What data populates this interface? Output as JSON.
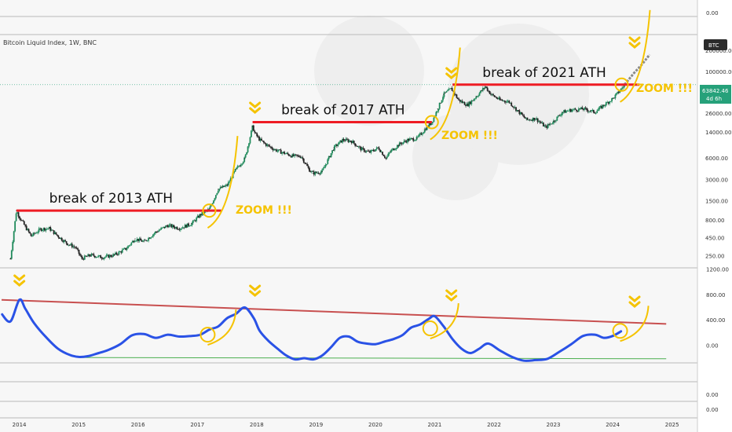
{
  "header": {
    "title": "Bitcoin Liquid Index, 1W, BNC",
    "symbol_badge": "BTC"
  },
  "price_badge": {
    "price": "63842.46",
    "countdown": "4d 6h"
  },
  "colors": {
    "ath_line": "#ee1c24",
    "zoom": "#f5c300",
    "oscillator": "#2a52e6",
    "resistance": "#c85050",
    "support": "#4caf50",
    "candle_up": "#1f8a5b",
    "candle_down": "#222222",
    "projection": "#8a8a8a"
  },
  "chart_data": [
    {
      "type": "line",
      "name": "price_pane",
      "yscale": "log",
      "ylim": [
        180,
        320000
      ],
      "y_ticks": [
        {
          "value": 200000,
          "label": "200000.00"
        },
        {
          "value": 100000,
          "label": "100000.00"
        },
        {
          "value": 26000,
          "label": "26000.00"
        },
        {
          "value": 14000,
          "label": "14000.00"
        },
        {
          "value": 6000,
          "label": "6000.00"
        },
        {
          "value": 3000,
          "label": "3000.00"
        },
        {
          "value": 1500,
          "label": "1500.00"
        },
        {
          "value": 800,
          "label": "800.00"
        },
        {
          "value": 450,
          "label": "450.00"
        },
        {
          "value": 250,
          "label": "250.00"
        }
      ],
      "x": [
        2013.85,
        2013.95,
        2014.0,
        2014.1,
        2014.2,
        2014.35,
        2014.5,
        2014.65,
        2014.8,
        2014.95,
        2015.05,
        2015.2,
        2015.4,
        2015.6,
        2015.8,
        2015.95,
        2016.1,
        2016.3,
        2016.5,
        2016.7,
        2016.9,
        2017.05,
        2017.2,
        2017.35,
        2017.5,
        2017.65,
        2017.8,
        2017.93,
        2017.97,
        2018.05,
        2018.15,
        2018.3,
        2018.45,
        2018.6,
        2018.75,
        2018.88,
        2018.95,
        2019.1,
        2019.3,
        2019.45,
        2019.6,
        2019.75,
        2019.9,
        2020.05,
        2020.18,
        2020.25,
        2020.4,
        2020.55,
        2020.7,
        2020.85,
        2020.95,
        2021.05,
        2021.15,
        2021.28,
        2021.4,
        2021.55,
        2021.7,
        2021.85,
        2021.95,
        2022.1,
        2022.25,
        2022.4,
        2022.55,
        2022.7,
        2022.87,
        2023.0,
        2023.15,
        2023.3,
        2023.5,
        2023.7,
        2023.85,
        2024.0,
        2024.1,
        2024.2
      ],
      "values": [
        230,
        1100,
        900,
        650,
        480,
        600,
        620,
        480,
        380,
        330,
        230,
        260,
        240,
        260,
        320,
        440,
        400,
        550,
        680,
        620,
        720,
        960,
        1150,
        2200,
        2500,
        4200,
        6000,
        17000,
        13500,
        11000,
        9500,
        8000,
        7200,
        6500,
        6400,
        4200,
        3700,
        3900,
        8500,
        11000,
        10500,
        8200,
        7300,
        8500,
        6000,
        7500,
        9500,
        11000,
        11500,
        16000,
        19500,
        30000,
        48000,
        58000,
        40000,
        34000,
        45000,
        62000,
        48000,
        40000,
        38000,
        28000,
        21000,
        22000,
        16500,
        20000,
        27000,
        29000,
        30000,
        27000,
        34000,
        42000,
        52000,
        66000
      ],
      "projection": {
        "x": [
          2024.2,
          2024.35,
          2024.5,
          2024.62
        ],
        "values": [
          66000,
          95000,
          130000,
          175000
        ]
      },
      "annotations": [
        {
          "text": "break of 2013 ATH",
          "level": 1100,
          "x_start": 2013.95,
          "x_end": 2017.4
        },
        {
          "text": "break of 2017 ATH",
          "level": 19500,
          "x_start": 2017.93,
          "x_end": 2020.95
        },
        {
          "text": "break of 2021 ATH",
          "level": 66000,
          "x_start": 2021.3,
          "x_end": 2024.45
        }
      ],
      "zoom_labels": [
        "ZOOM !!!",
        "ZOOM !!!",
        "ZOOM !!!"
      ]
    },
    {
      "type": "line",
      "name": "oscillator_pane",
      "ylim": [
        -250,
        1200
      ],
      "y_ticks": [
        {
          "value": 1200,
          "label": "1200.00"
        },
        {
          "value": 800,
          "label": "800.00"
        },
        {
          "value": 400,
          "label": "400.00"
        },
        {
          "value": 0,
          "label": "0.00"
        }
      ],
      "x": [
        2013.7,
        2013.85,
        2014.0,
        2014.1,
        2014.25,
        2014.45,
        2014.65,
        2014.85,
        2015.0,
        2015.15,
        2015.3,
        2015.5,
        2015.7,
        2015.9,
        2016.1,
        2016.3,
        2016.5,
        2016.7,
        2016.9,
        2017.05,
        2017.2,
        2017.35,
        2017.5,
        2017.65,
        2017.8,
        2017.95,
        2018.05,
        2018.2,
        2018.35,
        2018.5,
        2018.65,
        2018.8,
        2018.95,
        2019.1,
        2019.25,
        2019.4,
        2019.55,
        2019.7,
        2019.85,
        2020.0,
        2020.15,
        2020.3,
        2020.45,
        2020.6,
        2020.75,
        2020.9,
        2021.0,
        2021.15,
        2021.3,
        2021.45,
        2021.6,
        2021.75,
        2021.9,
        2022.1,
        2022.3,
        2022.5,
        2022.7,
        2022.9,
        2023.1,
        2023.3,
        2023.5,
        2023.7,
        2023.85,
        2024.0,
        2024.15
      ],
      "values": [
        500,
        380,
        720,
        580,
        350,
        130,
        -50,
        -150,
        -180,
        -170,
        -130,
        -70,
        20,
        160,
        180,
        120,
        170,
        140,
        150,
        170,
        250,
        300,
        430,
        500,
        600,
        430,
        230,
        70,
        -50,
        -160,
        -220,
        -200,
        -220,
        -160,
        -30,
        120,
        140,
        60,
        30,
        20,
        60,
        100,
        160,
        280,
        330,
        420,
        460,
        300,
        100,
        -50,
        -120,
        -50,
        30,
        -80,
        -180,
        -240,
        -230,
        -210,
        -100,
        20,
        150,
        170,
        120,
        150,
        230
      ],
      "resistance": {
        "x": [
          2013.7,
          2024.9
        ],
        "values": [
          720,
          340
        ]
      },
      "support": {
        "x": [
          2015.0,
          2024.9
        ],
        "values": [
          -190,
          -210
        ]
      }
    }
  ],
  "x_axis": {
    "xlim": [
      2013.7,
      2025.4
    ],
    "ticks": [
      {
        "value": 2014,
        "label": "2014"
      },
      {
        "value": 2015,
        "label": "2015"
      },
      {
        "value": 2016,
        "label": "2016"
      },
      {
        "value": 2017,
        "label": "2017"
      },
      {
        "value": 2018,
        "label": "2018"
      },
      {
        "value": 2019,
        "label": "2019"
      },
      {
        "value": 2020,
        "label": "2020"
      },
      {
        "value": 2021,
        "label": "2021"
      },
      {
        "value": 2022,
        "label": "2022"
      },
      {
        "value": 2023,
        "label": "2023"
      },
      {
        "value": 2024,
        "label": "2024"
      },
      {
        "value": 2025,
        "label": "2025"
      }
    ]
  },
  "side_panes": [
    {
      "label": "0.00"
    },
    {
      "label": "0.00"
    },
    {
      "label": "0.00"
    }
  ]
}
